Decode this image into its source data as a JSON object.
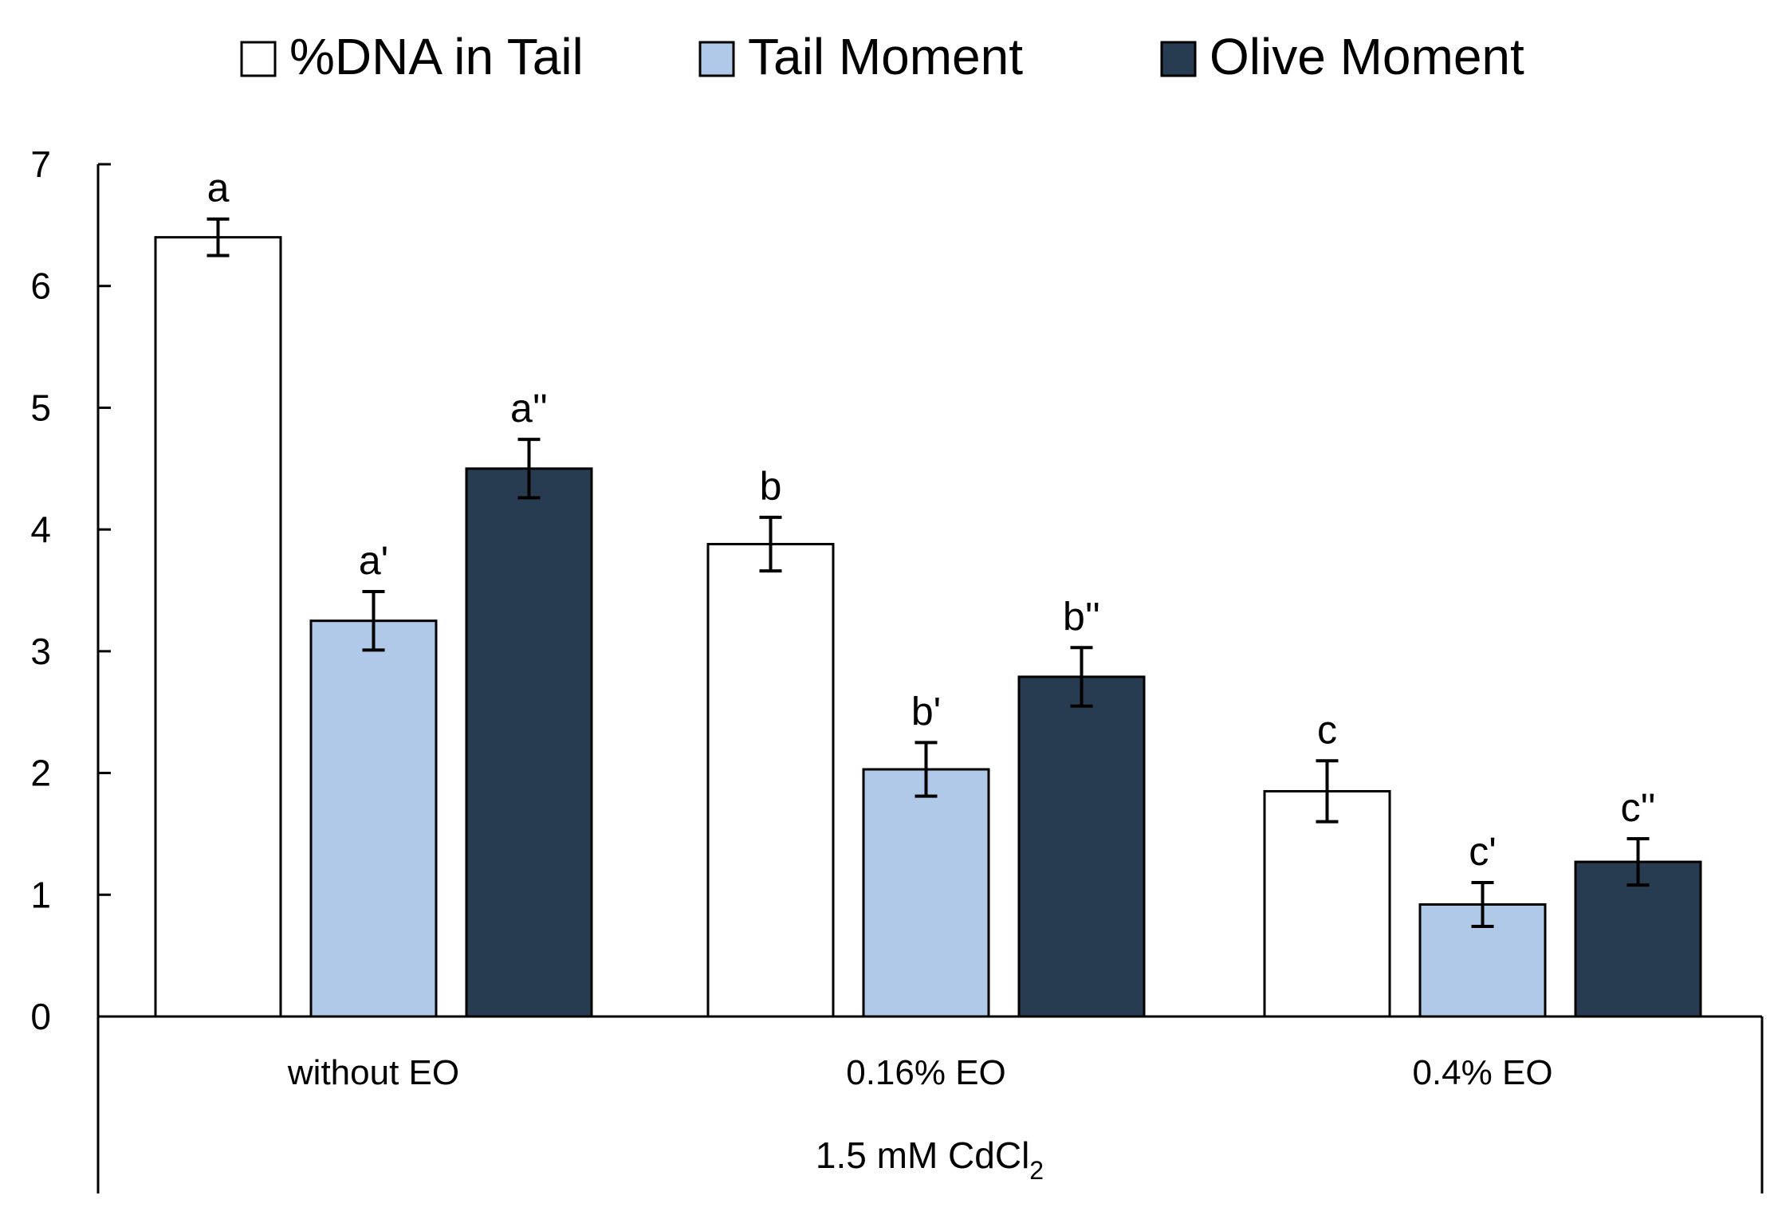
{
  "chart_data": {
    "type": "bar",
    "categories": [
      "without EO",
      "0.16% EO",
      "0.4% EO"
    ],
    "group_label": {
      "main": "1.5 mM CdCl",
      "subscript": "2"
    },
    "series": [
      {
        "name": "%DNA in Tail",
        "color": "#ffffff",
        "values": [
          6.4,
          3.88,
          1.85
        ],
        "errors": [
          0.15,
          0.22,
          0.25
        ],
        "sig_labels": [
          "a",
          "b",
          "c"
        ]
      },
      {
        "name": "Tail Moment",
        "color": "#b0c9e8",
        "values": [
          3.25,
          2.03,
          0.92
        ],
        "errors": [
          0.24,
          0.22,
          0.18
        ],
        "sig_labels": [
          "a'",
          "b'",
          "c'"
        ]
      },
      {
        "name": "Olive Moment",
        "color": "#283c51",
        "values": [
          4.5,
          2.79,
          1.27
        ],
        "errors": [
          0.24,
          0.24,
          0.19
        ],
        "sig_labels": [
          "a''",
          "b''",
          "c''"
        ]
      }
    ],
    "ylim": [
      0,
      7
    ],
    "yticks": [
      "0",
      "1",
      "2",
      "3",
      "4",
      "5",
      "6",
      "7"
    ],
    "xlabel": "",
    "ylabel": "",
    "grid": false,
    "legend_position": "top"
  }
}
